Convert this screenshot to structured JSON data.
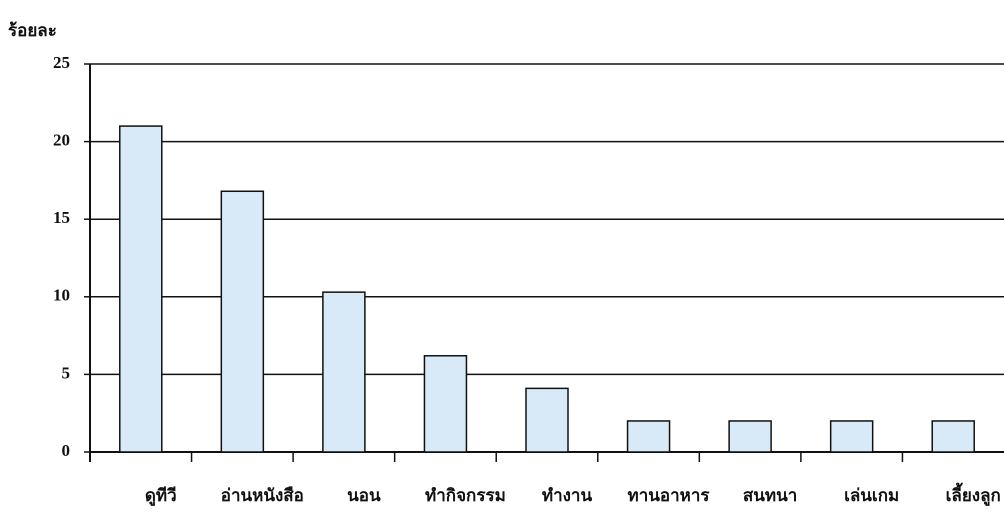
{
  "chart_data": {
    "type": "bar",
    "y_label": "ร้อยละ",
    "categories": [
      "ดูทีวี",
      "อ่านหนังสือ",
      "นอน",
      "ทำกิจกรรม",
      "ทำงาน",
      "ทานอาหาร",
      "สนทนา",
      "เล่นเกม",
      "เลี้ยงลูก"
    ],
    "values": [
      21,
      16.8,
      10.3,
      6.2,
      4.1,
      2,
      2,
      2,
      2
    ],
    "color": "#d8eaf8",
    "ylim": [
      0,
      25
    ],
    "yticks": [
      0,
      5,
      10,
      15,
      20,
      25
    ],
    "grid": true
  }
}
